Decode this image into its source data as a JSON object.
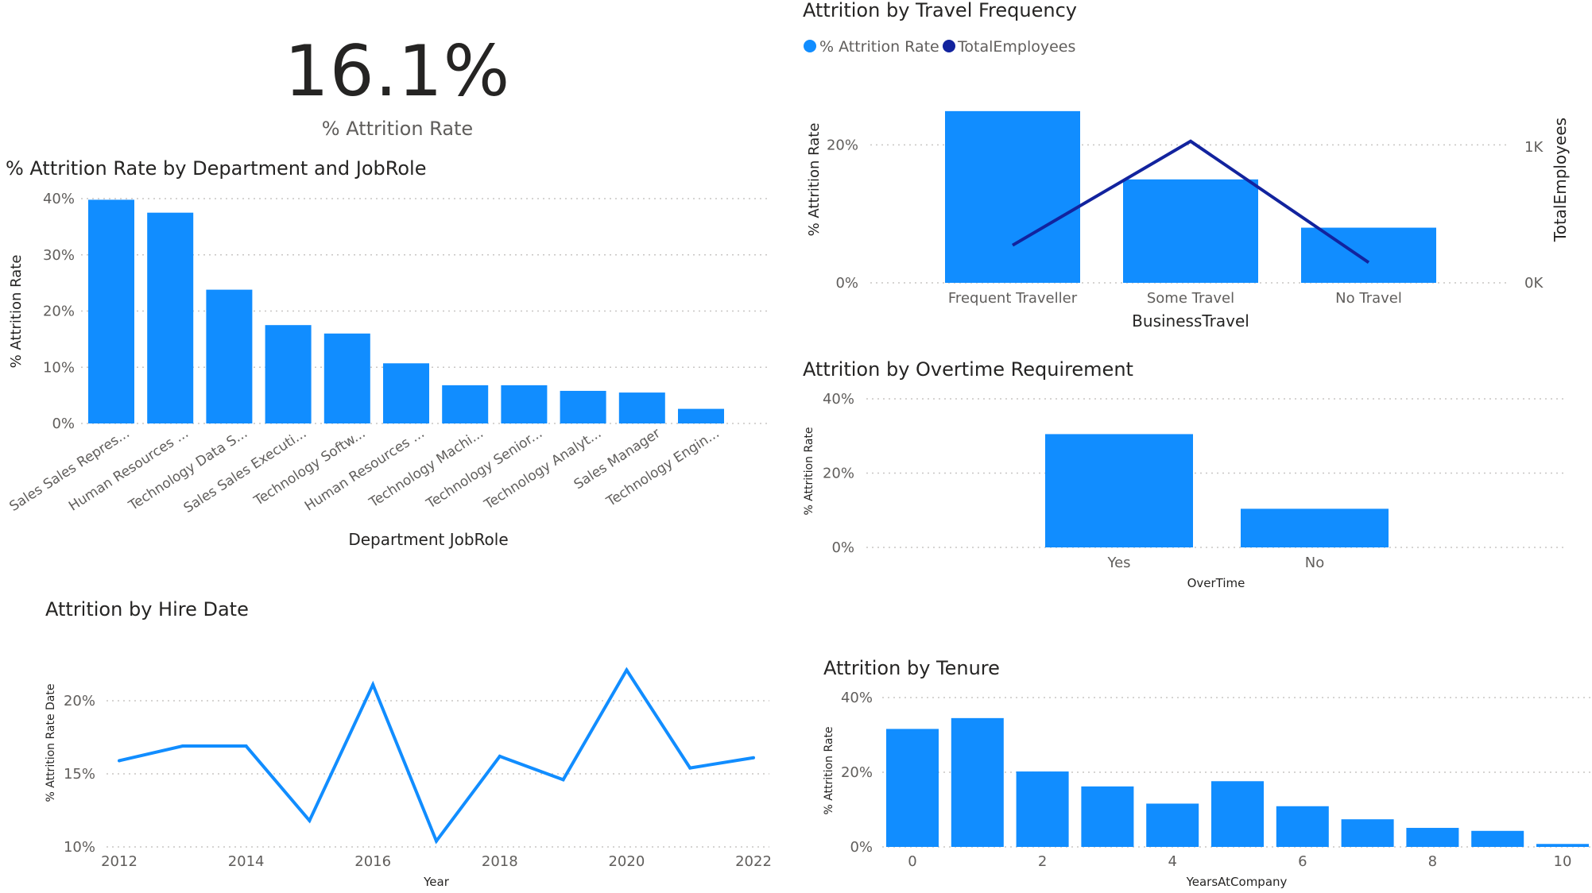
{
  "kpi": {
    "value": "16.1%",
    "label": "% Attrition Rate"
  },
  "colors": {
    "bar": "#118DFF",
    "line_secondary": "#12239E",
    "grid": "#C8C6C4",
    "text": "#252423",
    "axis_text": "#605E5C"
  },
  "chart_data": [
    {
      "id": "dept",
      "type": "bar",
      "title": "% Attrition Rate by Department and JobRole",
      "xlabel": "Department JobRole",
      "ylabel": "% Attrition Rate",
      "categories": [
        "Sales Sales Repres...",
        "Human Resources ...",
        "Technology Data S...",
        "Sales Sales Executi...",
        "Technology Softw...",
        "Human Resources ...",
        "Technology Machi...",
        "Technology Senior...",
        "Technology Analyt...",
        "Sales Manager",
        "Technology Engin..."
      ],
      "values": [
        39.8,
        37.5,
        23.8,
        17.5,
        16.0,
        10.7,
        6.8,
        6.8,
        5.8,
        5.5,
        2.6
      ],
      "ylim": [
        0,
        40
      ],
      "yticks": [
        0,
        10,
        20,
        30,
        40
      ],
      "ytick_labels": [
        "0%",
        "10%",
        "20%",
        "30%",
        "40%"
      ],
      "grid": true
    },
    {
      "id": "travel",
      "type": "bar",
      "title": "Attrition by Travel Frequency",
      "legend": [
        {
          "label": "% Attrition Rate",
          "color": "#118DFF"
        },
        {
          "label": "TotalEmployees",
          "color": "#12239E"
        }
      ],
      "legend_position": "top-left",
      "xlabel": "BusinessTravel",
      "ylabel": "% Attrition Rate",
      "y2label": "TotalEmployees",
      "categories": [
        "Frequent Traveller",
        "Some Travel",
        "No Travel"
      ],
      "series": [
        {
          "name": "% Attrition Rate",
          "type": "bar",
          "values": [
            24.9,
            15.0,
            8.0
          ]
        },
        {
          "name": "TotalEmployees",
          "type": "line",
          "axis": "secondary",
          "values": [
            277,
            1043,
            150
          ]
        }
      ],
      "ylim": [
        0,
        25
      ],
      "y2lim": [
        0,
        1270
      ],
      "yticks": [
        0,
        20
      ],
      "ytick_labels": [
        "0%",
        "20%"
      ],
      "y2ticks": [
        0,
        1000
      ],
      "y2tick_labels": [
        "0K",
        "1K"
      ],
      "grid": true
    },
    {
      "id": "overtime",
      "type": "bar",
      "title": "Attrition by Overtime Requirement",
      "xlabel": "OverTime",
      "ylabel": "% Attrition Rate",
      "categories": [
        "Yes",
        "No"
      ],
      "values": [
        30.5,
        10.4
      ],
      "ylim": [
        0,
        40
      ],
      "yticks": [
        0,
        20,
        40
      ],
      "ytick_labels": [
        "0%",
        "20%",
        "40%"
      ],
      "grid": true
    },
    {
      "id": "hire",
      "type": "line",
      "title": "Attrition by Hire Date",
      "xlabel": "Year",
      "ylabel": "% Attrition Rate Date",
      "x": [
        2012,
        2013,
        2014,
        2015,
        2016,
        2017,
        2018,
        2019,
        2020,
        2021,
        2022
      ],
      "values": [
        15.9,
        16.9,
        16.9,
        11.8,
        21.1,
        10.4,
        16.2,
        14.6,
        22.1,
        15.4,
        16.1
      ],
      "xlim": [
        2012,
        2022
      ],
      "xticks": [
        2012,
        2014,
        2016,
        2018,
        2020,
        2022
      ],
      "xtick_labels": [
        "2012",
        "2014",
        "2016",
        "2018",
        "2020",
        "2022"
      ],
      "ylim": [
        10,
        22.5
      ],
      "yticks": [
        10,
        15,
        20
      ],
      "ytick_labels": [
        "10%",
        "15%",
        "20%"
      ],
      "grid": true
    },
    {
      "id": "tenure",
      "type": "bar",
      "title": "Attrition by Tenure",
      "xlabel": "YearsAtCompany",
      "ylabel": "% Attrition Rate",
      "x": [
        0,
        1,
        2,
        3,
        4,
        5,
        6,
        7,
        8,
        9,
        10
      ],
      "values": [
        31.6,
        34.5,
        20.2,
        16.2,
        11.6,
        17.6,
        10.9,
        7.4,
        5.1,
        4.3,
        0.8
      ],
      "xticks": [
        0,
        2,
        4,
        6,
        8,
        10
      ],
      "xtick_labels": [
        "0",
        "2",
        "4",
        "6",
        "8",
        "10"
      ],
      "ylim": [
        0,
        40
      ],
      "yticks": [
        0,
        20,
        40
      ],
      "ytick_labels": [
        "0%",
        "20%",
        "40%"
      ],
      "grid": true
    }
  ]
}
